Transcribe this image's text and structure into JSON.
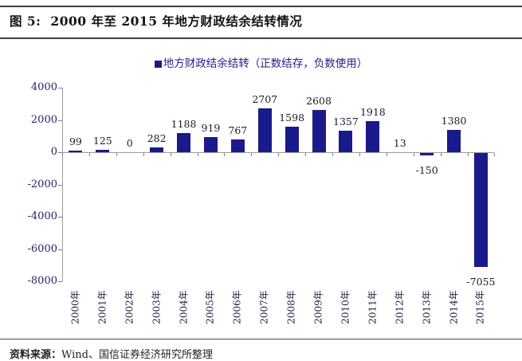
{
  "header": {
    "title_prefix": "图 5:",
    "title_text": "2000 年至 2015 年地方财政结余结转情况"
  },
  "legend": {
    "label": "地方财政结余结转（正数结存，负数使用）"
  },
  "footer": {
    "source_label": "资料来源：",
    "source_text": "Wind、国信证券经济研究所整理"
  },
  "colors": {
    "bar": "#1a1a8c",
    "legend_text": "#1f1f8e",
    "axis_line": "#9a9a9a",
    "title_text": "#141414"
  },
  "chart_data": {
    "type": "bar",
    "title": "图 5: 2000 年至 2015 年地方财政结余结转情况",
    "legend": [
      "地方财政结余结转（正数结存，负数使用）"
    ],
    "legend_position": "top-center",
    "categories": [
      "2000年",
      "2001年",
      "2002年",
      "2003年",
      "2004年",
      "2005年",
      "2006年",
      "2007年",
      "2008年",
      "2009年",
      "2010年",
      "2011年",
      "2012年",
      "2013年",
      "2014年",
      "2015年"
    ],
    "values": [
      99,
      125,
      0,
      282,
      1188,
      919,
      767,
      2707,
      1598,
      2608,
      1357,
      1918,
      13,
      -150,
      1380,
      -7055
    ],
    "xlabel": "",
    "ylabel": "",
    "ylim": [
      -8000,
      4000
    ],
    "ytick_step": 2000,
    "yticks": [
      4000,
      2000,
      0,
      -2000,
      -4000,
      -6000,
      -8000
    ],
    "grid": false,
    "bar_color": "#1a1a8c",
    "source": "资料来源：Wind、国信证券经济研究所整理"
  }
}
